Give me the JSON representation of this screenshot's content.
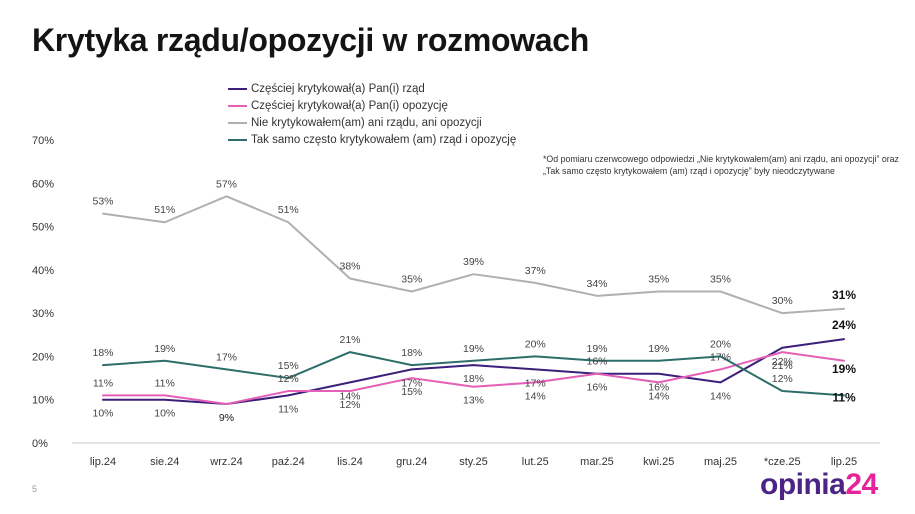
{
  "title": "Krytyka rządu/opozycji w rozmowach",
  "note": "*Od pomiaru czerwcowego odpowiedzi „Nie krytykowałem(am) ani rządu, ani opozycji” oraz „Tak samo często krytykowałem (am) rząd i opozycję” były nieodczytywane",
  "page_number": "5",
  "logo": {
    "part1": "opinia",
    "part2": "24"
  },
  "chart_data": {
    "type": "line",
    "categories": [
      "lip.24",
      "sie.24",
      "wrz.24",
      "paź.24",
      "lis.24",
      "gru.24",
      "sty.25",
      "lut.25",
      "mar.25",
      "kwi.25",
      "maj.25",
      "*cze.25",
      "lip.25"
    ],
    "ylim": [
      0,
      70
    ],
    "yticks": [
      "0%",
      "10%",
      "20%",
      "30%",
      "40%",
      "50%",
      "60%",
      "70%"
    ],
    "grid": false,
    "legend_position": "top",
    "series": [
      {
        "name": "Częściej krytykował(a) Pan(i) rząd",
        "color": "#3b1f7a",
        "values": [
          10,
          10,
          9,
          11,
          14,
          17,
          18,
          17,
          16,
          16,
          14,
          22,
          24
        ],
        "labels": [
          "10%",
          "10%",
          "9%",
          "11%",
          "14%",
          "17%",
          "18%",
          "17%",
          "16%",
          "16%",
          "14%",
          "22%",
          "24%"
        ]
      },
      {
        "name": "Częściej krytykował(a) Pan(i) opozycję",
        "color": "#e45fb6",
        "values": [
          11,
          11,
          9,
          12,
          12,
          15,
          13,
          14,
          16,
          14,
          17,
          21,
          19
        ],
        "labels": [
          "11%",
          "11%",
          "9%",
          "12%",
          "12%",
          "15%",
          "13%",
          "14%",
          "16%",
          "14%",
          "17%",
          "21%",
          "19%"
        ]
      },
      {
        "name": "Nie krytykowałem(am) ani rządu, ani opozycji",
        "color": "#b0b0b0",
        "values": [
          53,
          51,
          57,
          51,
          38,
          35,
          39,
          37,
          34,
          35,
          35,
          30,
          31
        ],
        "labels": [
          "53%",
          "51%",
          "57%",
          "51%",
          "38%",
          "35%",
          "39%",
          "37%",
          "34%",
          "35%",
          "35%",
          "30%",
          "31%"
        ]
      },
      {
        "name": "Tak samo często krytykowałem (am) rząd i opozycję",
        "color": "#2e6e6a",
        "values": [
          18,
          19,
          17,
          15,
          21,
          18,
          19,
          20,
          19,
          19,
          20,
          12,
          11
        ],
        "labels": [
          "18%",
          "19%",
          "17%",
          "15%",
          "21%",
          "18%",
          "19%",
          "20%",
          "19%",
          "19%",
          "20%",
          "12%",
          "11%"
        ]
      }
    ]
  }
}
